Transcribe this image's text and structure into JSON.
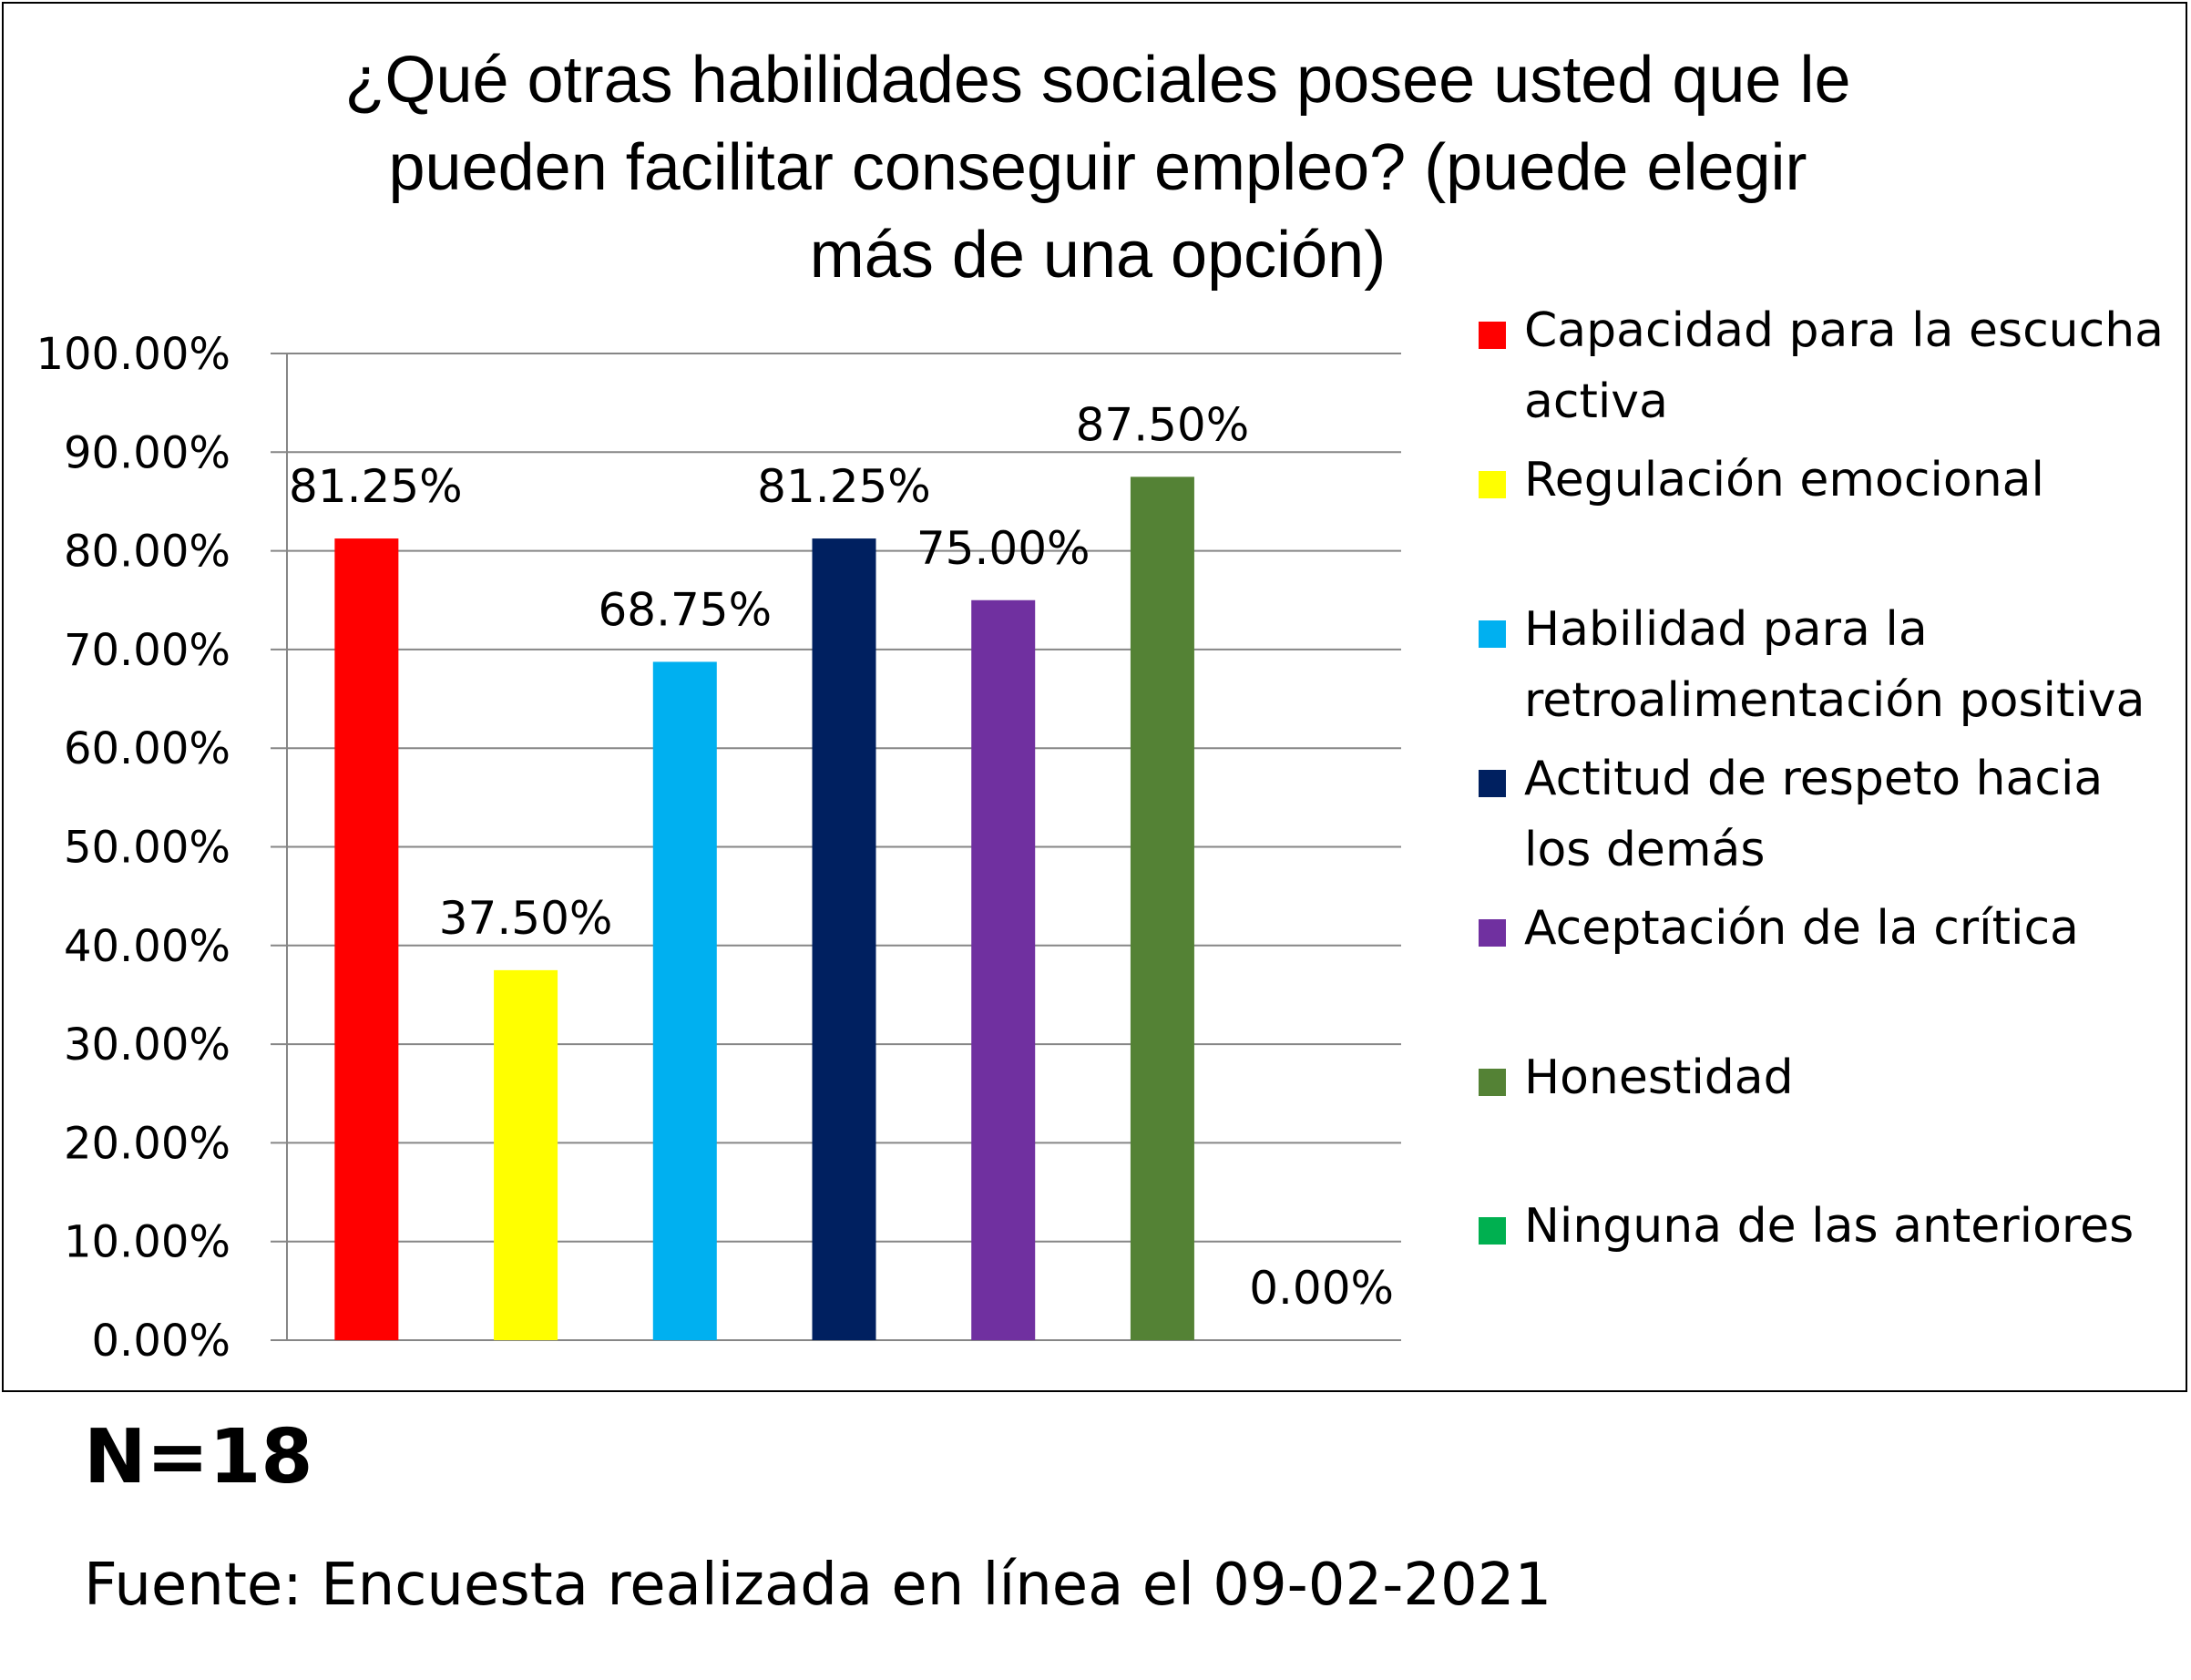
{
  "chart_data": {
    "type": "bar",
    "title_lines": [
      "¿Qué otras habilidades sociales posee usted que le",
      "pueden facilitar conseguir empleo? (puede elegir",
      "más de una opción)"
    ],
    "categories": [
      "Capacidad para la escucha activa",
      "Regulación emocional",
      "Habilidad para la retroalimentación positiva",
      "Actitud de respeto hacia los demás",
      "Aceptación de la crítica",
      "Honestidad",
      "Ninguna de las anteriores"
    ],
    "values": [
      81.25,
      37.5,
      68.75,
      81.25,
      75.0,
      87.5,
      0.0
    ],
    "data_labels": [
      "81.25%",
      "37.50%",
      "68.75%",
      "81.25%",
      "75.00%",
      "87.50%",
      "0.00%"
    ],
    "colors": [
      "#ff0000",
      "#ffff00",
      "#00b0f0",
      "#002060",
      "#7030a0",
      "#548235",
      "#00b050"
    ],
    "ylim": [
      0,
      100
    ],
    "yticks": [
      "0.00%",
      "10.00%",
      "20.00%",
      "30.00%",
      "40.00%",
      "50.00%",
      "60.00%",
      "70.00%",
      "80.00%",
      "90.00%",
      "100.00%"
    ],
    "legend": [
      {
        "lines": [
          "Capacidad para la escucha",
          "activa"
        ],
        "color": "#ff0000"
      },
      {
        "lines": [
          "Regulación emocional"
        ],
        "color": "#ffff00"
      },
      {
        "lines": [
          "Habilidad para la",
          "retroalimentación positiva"
        ],
        "color": "#00b0f0"
      },
      {
        "lines": [
          "Actitud de respeto hacia",
          "los demás"
        ],
        "color": "#002060"
      },
      {
        "lines": [
          "Aceptación de la crítica"
        ],
        "color": "#7030a0"
      },
      {
        "lines": [
          "Honestidad"
        ],
        "color": "#548235"
      },
      {
        "lines": [
          "Ninguna de las anteriores"
        ],
        "color": "#00b050"
      }
    ],
    "legend_position": "right",
    "grid": true
  },
  "footer": {
    "n_label": "N=18",
    "source": "Fuente: Encuesta realizada en línea el 09-02-2021"
  }
}
